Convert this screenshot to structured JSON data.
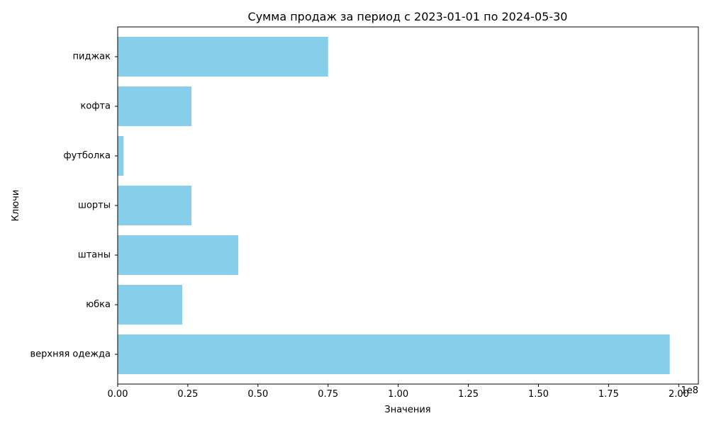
{
  "chart_data": {
    "type": "bar",
    "orientation": "horizontal",
    "title": "Сумма продаж за период с 2023-01-01 по 2024-05-30",
    "xlabel": "Значения",
    "ylabel": "Ключи",
    "x_offset_label": "1e8",
    "categories": [
      "верхняя одежда",
      "юбка",
      "штаны",
      "шорты",
      "футболка",
      "кофта",
      "пиджак"
    ],
    "values": [
      196800000,
      23000000,
      43000000,
      26300000,
      2100000,
      26300000,
      75000000
    ],
    "xlim": [
      0,
      207000000
    ],
    "x_ticks": [
      0,
      25000000,
      50000000,
      75000000,
      100000000,
      125000000,
      150000000,
      175000000,
      200000000
    ],
    "x_tick_labels": [
      "0.00",
      "0.25",
      "0.50",
      "0.75",
      "1.00",
      "1.25",
      "1.50",
      "1.75",
      "2.00"
    ],
    "grid": false,
    "legend": "none",
    "bar_color": "#87ceeb",
    "axis_color": "#000000"
  }
}
